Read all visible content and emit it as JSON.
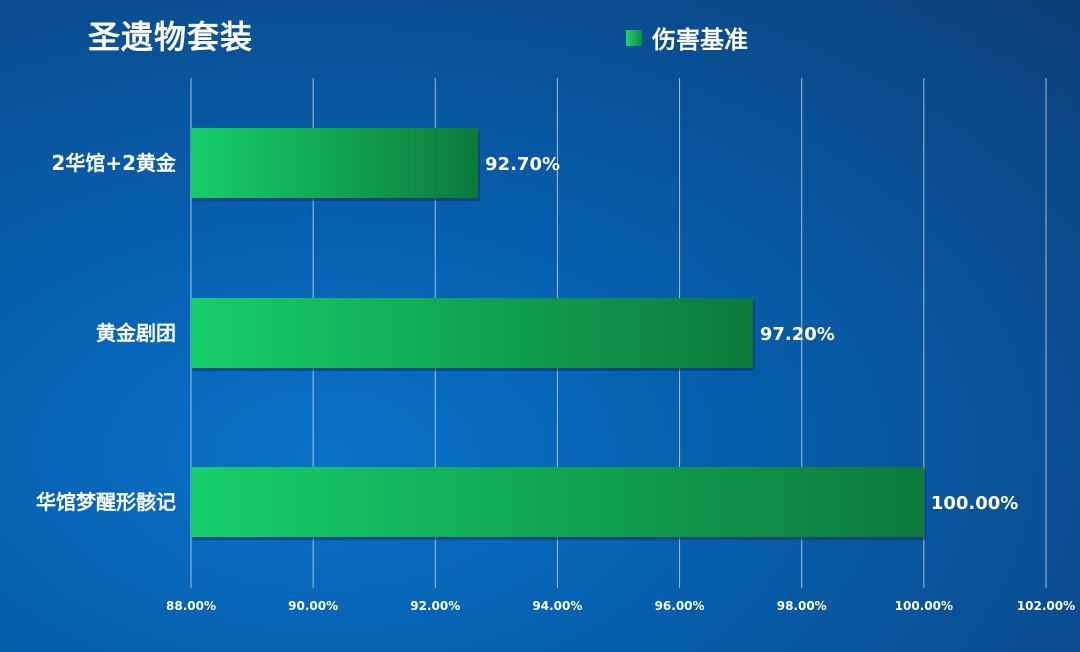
{
  "chart_data": {
    "type": "bar",
    "orientation": "horizontal",
    "title": "圣遗物套装",
    "categories": [
      "2华馆+2黄金",
      "黄金剧团",
      "华馆梦醒形骸记"
    ],
    "series": [
      {
        "name": "伤害基准",
        "values": [
          92.7,
          97.2,
          100.0
        ],
        "labels": [
          "92.70%",
          "97.20%",
          "100.00%"
        ]
      }
    ],
    "xlim": [
      88,
      102
    ],
    "xticks": [
      88,
      90,
      92,
      94,
      96,
      98,
      100,
      102
    ],
    "xtick_labels": [
      "88.00%",
      "90.00%",
      "92.00%",
      "94.00%",
      "96.00%",
      "98.00%",
      "100.00%",
      "102.00%"
    ],
    "grid": true,
    "legend_position": "top",
    "colors": {
      "bar_start": "#16cf6a",
      "bar_end": "#0c7a3c",
      "gridline": "#d8e4f0",
      "text": "#ffffff"
    }
  }
}
